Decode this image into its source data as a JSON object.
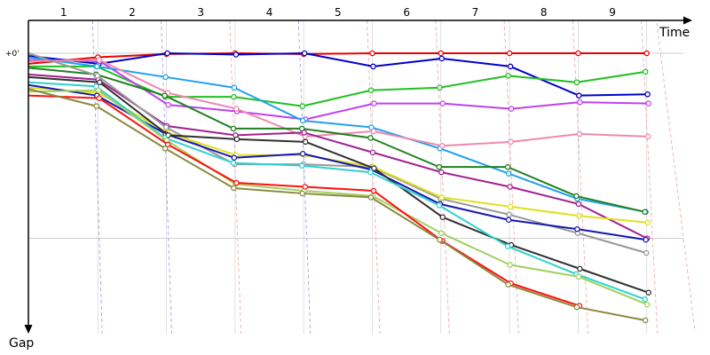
{
  "chart_data": {
    "type": "line",
    "x_axis": {
      "label": "Time",
      "laps": [
        "1",
        "2",
        "3",
        "4",
        "5",
        "6",
        "7",
        "8",
        "9"
      ]
    },
    "y_axis": {
      "label": "Gap",
      "zero_label": "+0'",
      "ticks": [
        0,
        70
      ],
      "range": [
        0,
        102
      ],
      "direction": "down"
    },
    "grid": true,
    "legend": "none",
    "series": [
      {
        "color": "#e80000",
        "values": [
          4,
          1.5,
          0.3,
          0,
          0.3,
          0,
          0,
          0,
          0,
          0
        ]
      },
      {
        "color": "#0000cc",
        "values": [
          1,
          4,
          0,
          0.5,
          0,
          5,
          2,
          5,
          16,
          15.5
        ]
      },
      {
        "color": "#20c020",
        "values": [
          5,
          5,
          16.5,
          16.5,
          20,
          14,
          13,
          8.5,
          11,
          7
        ]
      },
      {
        "color": "#c040f0",
        "values": [
          2.5,
          3,
          19.5,
          22,
          25,
          19,
          19,
          21,
          18.5,
          19
        ]
      },
      {
        "color": "#20a0f0",
        "values": [
          1.5,
          5,
          9,
          13,
          25.5,
          28,
          36,
          45.5,
          55,
          60
        ]
      },
      {
        "color": "#f088b0",
        "values": [
          3,
          2.5,
          15,
          21,
          31.5,
          29.5,
          35,
          33.5,
          30.5,
          31.5
        ]
      },
      {
        "color": "#208020",
        "values": [
          5.5,
          8,
          16,
          28.5,
          28.5,
          32,
          43,
          43,
          54,
          60
        ]
      },
      {
        "color": "#a02090",
        "values": [
          8,
          10,
          27.5,
          31,
          30,
          37.5,
          45,
          50.5,
          57,
          70
        ]
      },
      {
        "color": "#999999",
        "values": [
          0,
          8.5,
          28,
          42,
          42,
          43,
          55,
          61,
          68,
          75.5
        ]
      },
      {
        "color": "#e0e020",
        "values": [
          13,
          15,
          30,
          38.5,
          38.5,
          43,
          54.5,
          58,
          61.5,
          64
        ]
      },
      {
        "color": "#1818b0",
        "values": [
          12,
          16,
          30.5,
          39.5,
          38,
          44,
          57,
          63,
          66.5,
          70.5
        ]
      },
      {
        "color": "#303030",
        "values": [
          9,
          11,
          31,
          32.5,
          33.5,
          43.5,
          62,
          72.5,
          81.5,
          90.5
        ]
      },
      {
        "color": "#30d0d0",
        "values": [
          11,
          12.5,
          32,
          41.5,
          42.5,
          45,
          57.5,
          73,
          83.5,
          93
        ]
      },
      {
        "color": "#a0d060",
        "values": [
          14.5,
          14,
          33,
          49.5,
          52,
          54,
          68,
          80,
          84.5,
          95
        ]
      },
      {
        "color": "#ff1010",
        "values": [
          16,
          17,
          34.5,
          49,
          50.5,
          52,
          71,
          87,
          95.5
        ]
      },
      {
        "color": "#8a8a40",
        "values": [
          13.5,
          20,
          36,
          51,
          53,
          54.5,
          70.5,
          87.5,
          96,
          101
        ]
      }
    ]
  }
}
